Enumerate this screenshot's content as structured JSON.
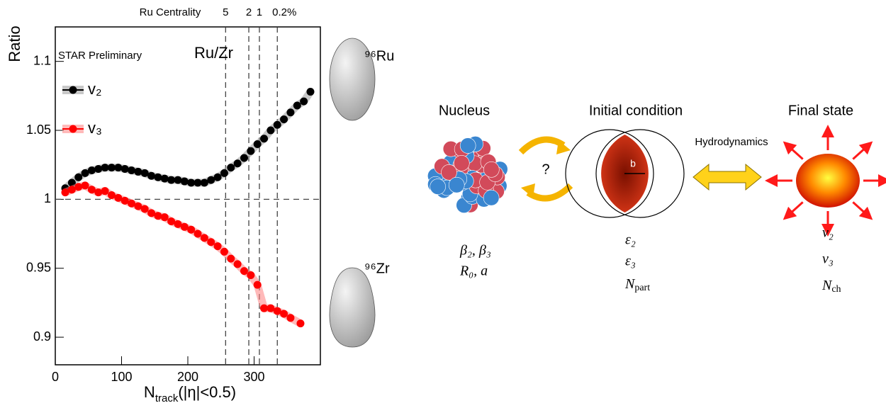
{
  "chart_data": {
    "type": "scatter",
    "y_label": "Ratio",
    "x_label": {
      "base": "N",
      "sub": "track",
      "rest": "(|η|<0.5)"
    },
    "annotations": [
      "STAR Preliminary",
      "Ru/Zr"
    ],
    "top_axis_label": "Ru Centrality",
    "centrality_lines": [
      {
        "value": 257,
        "label": "5"
      },
      {
        "value": 292,
        "label": "2"
      },
      {
        "value": 308,
        "label": "1"
      },
      {
        "value": 335,
        "label": "0.2%"
      }
    ],
    "reference_line": 1,
    "xlim": [
      0,
      400
    ],
    "ylim": [
      0.88,
      1.125
    ],
    "xticks": [
      0,
      100,
      200,
      300
    ],
    "yticks": [
      0.9,
      0.95,
      1,
      1.05,
      1.1
    ],
    "series": [
      {
        "name": "v₂",
        "color": "#000000",
        "band_color": "#9a9a9a",
        "x": [
          15,
          25,
          35,
          45,
          55,
          65,
          75,
          85,
          95,
          105,
          115,
          125,
          135,
          145,
          155,
          165,
          175,
          185,
          195,
          205,
          215,
          225,
          235,
          245,
          255,
          265,
          275,
          285,
          295,
          305,
          315,
          325,
          335,
          345,
          355,
          365,
          375,
          385
        ],
        "values": [
          1.008,
          1.012,
          1.016,
          1.019,
          1.021,
          1.022,
          1.023,
          1.023,
          1.023,
          1.022,
          1.021,
          1.02,
          1.019,
          1.017,
          1.016,
          1.015,
          1.014,
          1.014,
          1.013,
          1.012,
          1.012,
          1.012,
          1.014,
          1.016,
          1.019,
          1.023,
          1.026,
          1.03,
          1.035,
          1.04,
          1.044,
          1.05,
          1.054,
          1.058,
          1.063,
          1.068,
          1.071,
          1.078
        ]
      },
      {
        "name": "v₃",
        "color": "#ff0000",
        "band_color": "#ff8080",
        "x": [
          15,
          25,
          35,
          45,
          55,
          65,
          75,
          85,
          95,
          105,
          115,
          125,
          135,
          145,
          155,
          165,
          175,
          185,
          195,
          205,
          215,
          225,
          235,
          245,
          255,
          265,
          275,
          285,
          295,
          305,
          315,
          325,
          335,
          345,
          355,
          370
        ],
        "values": [
          1.005,
          1.007,
          1.009,
          1.01,
          1.007,
          1.005,
          1.006,
          1.003,
          1.001,
          0.999,
          0.997,
          0.995,
          0.993,
          0.99,
          0.988,
          0.987,
          0.984,
          0.982,
          0.98,
          0.978,
          0.975,
          0.972,
          0.969,
          0.966,
          0.962,
          0.957,
          0.953,
          0.948,
          0.945,
          0.938,
          0.921,
          0.921,
          0.919,
          0.917,
          0.914,
          0.91
        ]
      }
    ]
  },
  "nuclei": [
    "⁹⁶Ru",
    "⁹⁶Zr"
  ],
  "diagram": {
    "stages": [
      "Nucleus",
      "Initial condition",
      "Final state"
    ],
    "question": "?",
    "impact": "b",
    "hydro": "Hydrodynamics",
    "nucleus_params": [
      "β₂, β₃",
      "R₀, a"
    ],
    "initial_params": [
      "ε₂",
      "ε₃",
      {
        "base": "N",
        "sub": "part"
      }
    ],
    "final_params": [
      "v₂",
      "v₃",
      {
        "base": "N",
        "sub": "ch"
      }
    ]
  }
}
